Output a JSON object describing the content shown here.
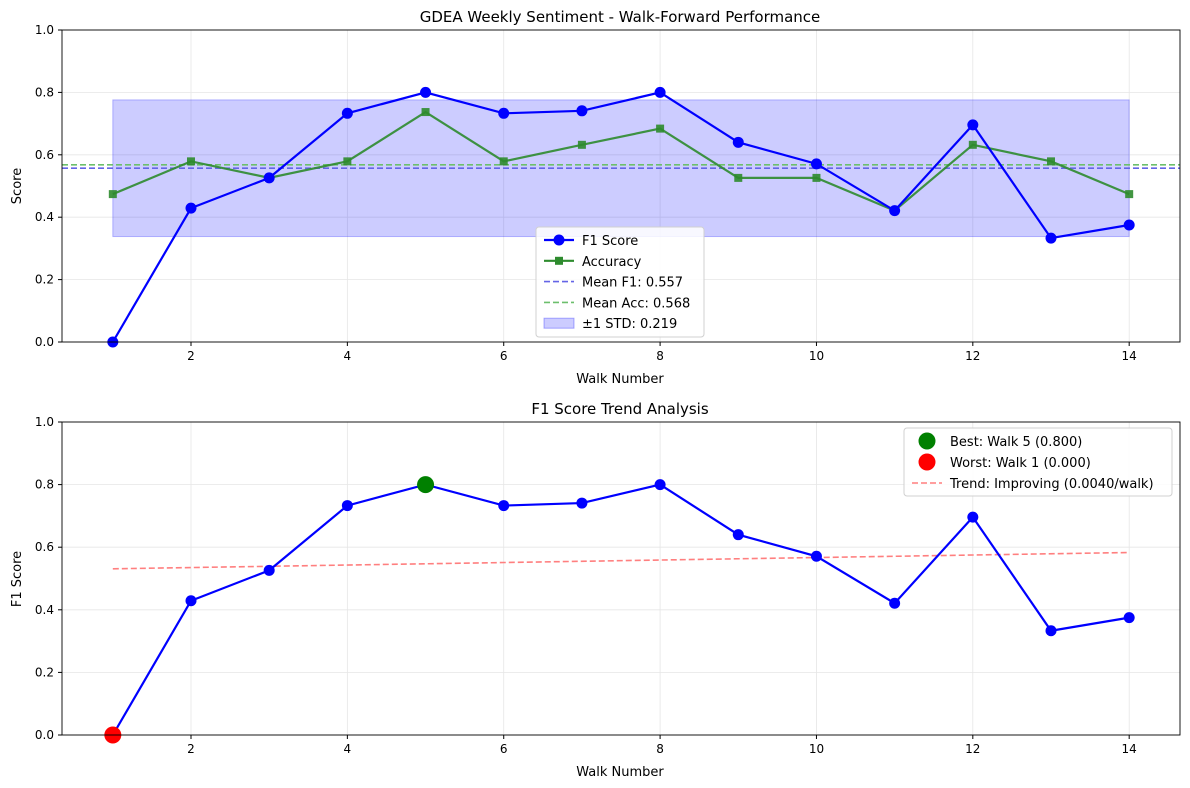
{
  "chart_data": [
    {
      "type": "line",
      "title": "GDEA Weekly Sentiment - Walk-Forward Performance",
      "xlabel": "Walk Number",
      "ylabel": "Score",
      "xlim": [
        0.35,
        14.65
      ],
      "ylim": [
        0,
        1
      ],
      "xticks": [
        "2",
        "4",
        "6",
        "8",
        "10",
        "12",
        "14"
      ],
      "yticks": [
        "0.0",
        "0.2",
        "0.4",
        "0.6",
        "0.8",
        "1.0"
      ],
      "grid": true,
      "legend_position": "lower-center",
      "x": [
        1,
        2,
        3,
        4,
        5,
        6,
        7,
        8,
        9,
        10,
        11,
        12,
        13,
        14
      ],
      "series": [
        {
          "name": "F1 Score",
          "color": "#0000ff",
          "marker": "circle",
          "values": [
            0.0,
            0.429,
            0.526,
            0.733,
            0.8,
            0.733,
            0.741,
            0.8,
            0.64,
            0.571,
            0.421,
            0.696,
            0.333,
            0.375
          ]
        },
        {
          "name": "Accuracy",
          "color": "#2e8b2e",
          "marker": "square",
          "values": [
            0.474,
            0.579,
            0.526,
            0.579,
            0.737,
            0.579,
            0.632,
            0.684,
            0.526,
            0.526,
            0.421,
            0.632,
            0.579,
            0.474
          ]
        }
      ],
      "reference_lines": [
        {
          "name": "Mean F1: 0.557",
          "value": 0.557,
          "color": "#6464e6"
        },
        {
          "name": "Mean Acc: 0.568",
          "value": 0.568,
          "color": "#6cbf6c"
        }
      ],
      "band": {
        "name": "±1 STD: 0.219",
        "lower": 0.338,
        "upper": 0.776,
        "color": "#ccccff"
      }
    },
    {
      "type": "line",
      "title": "F1 Score Trend Analysis",
      "xlabel": "Walk Number",
      "ylabel": "F1 Score",
      "xlim": [
        0.35,
        14.65
      ],
      "ylim": [
        0,
        1
      ],
      "xticks": [
        "2",
        "4",
        "6",
        "8",
        "10",
        "12",
        "14"
      ],
      "yticks": [
        "0.0",
        "0.2",
        "0.4",
        "0.6",
        "0.8",
        "1.0"
      ],
      "grid": true,
      "legend_position": "top-right",
      "x": [
        1,
        2,
        3,
        4,
        5,
        6,
        7,
        8,
        9,
        10,
        11,
        12,
        13,
        14
      ],
      "series": [
        {
          "color": "#0000ff",
          "marker": "circle",
          "values": [
            0.0,
            0.429,
            0.526,
            0.733,
            0.8,
            0.733,
            0.741,
            0.8,
            0.64,
            0.571,
            0.421,
            0.696,
            0.333,
            0.375
          ]
        }
      ],
      "highlights": [
        {
          "name": "Best: Walk 5 (0.800)",
          "x": 5,
          "y": 0.8,
          "color": "#008000"
        },
        {
          "name": "Worst: Walk 1 (0.000)",
          "x": 1,
          "y": 0.0,
          "color": "#ff0000"
        }
      ],
      "trend": {
        "name": "Trend: Improving (0.0040/walk)",
        "x": [
          1,
          14
        ],
        "y": [
          0.531,
          0.583
        ],
        "color": "#ff7f7f"
      }
    }
  ]
}
